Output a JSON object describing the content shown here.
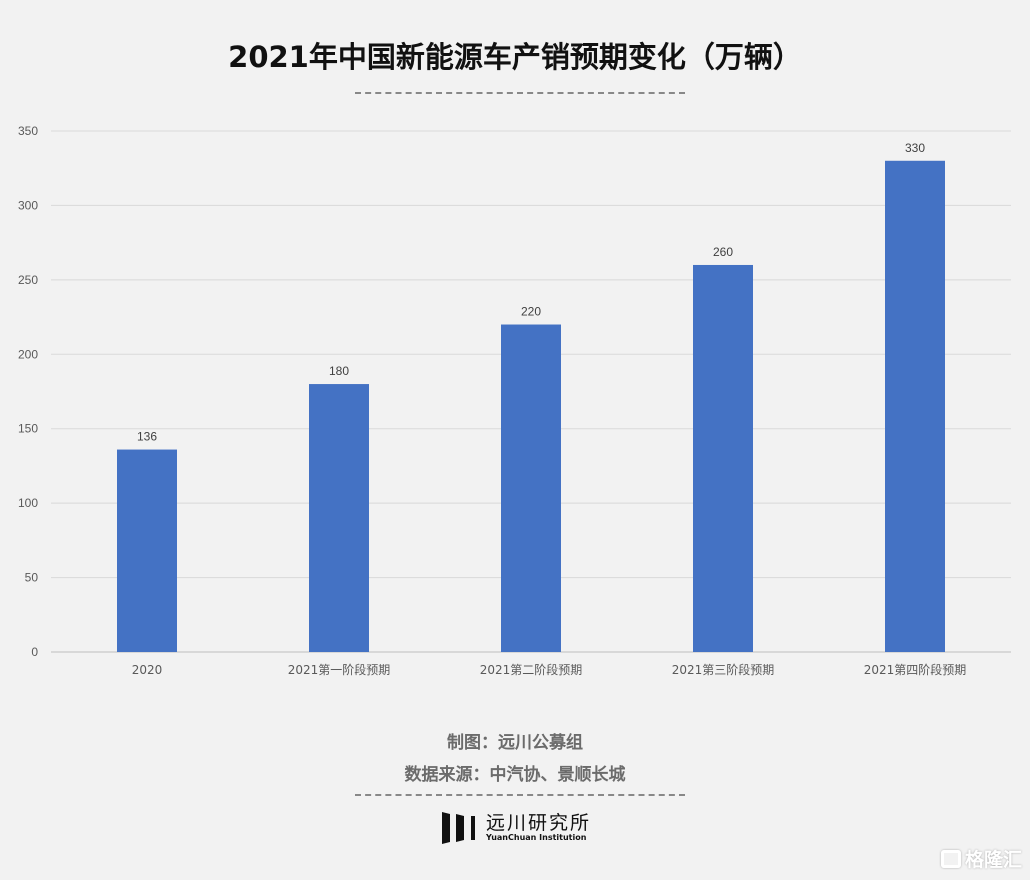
{
  "chart_data": {
    "type": "bar",
    "title": "2021年中国新能源车产销预期变化（万辆）",
    "categories": [
      "2020",
      "2021第一阶段预期",
      "2021第二阶段预期",
      "2021第三阶段预期",
      "2021第四阶段预期"
    ],
    "values": [
      136,
      180,
      220,
      260,
      330
    ],
    "data_labels": [
      "136",
      "180",
      "220",
      "260",
      "330"
    ],
    "xlabel": "",
    "ylabel": "",
    "ylim": [
      0,
      350
    ],
    "yticks": [
      0,
      50,
      100,
      150,
      200,
      250,
      300,
      350
    ],
    "grid": true,
    "legend": "none",
    "bar_color": "#4472c4"
  },
  "credits": {
    "maker": "制图：远川公募组",
    "source": "数据来源：中汽协、景顺长城"
  },
  "logo": {
    "cn": "远川研究所",
    "en": "YuanChuan Institution"
  },
  "watermark": "格隆汇"
}
